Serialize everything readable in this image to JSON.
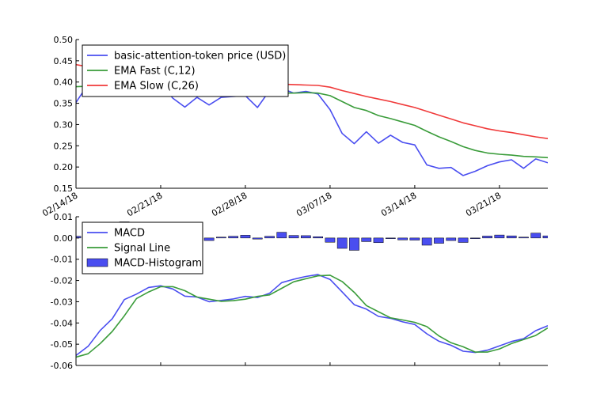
{
  "chart_data": [
    {
      "type": "line",
      "x": [
        "02/14/18",
        "02/15/18",
        "02/16/18",
        "02/17/18",
        "02/18/18",
        "02/19/18",
        "02/20/18",
        "02/21/18",
        "02/22/18",
        "02/23/18",
        "02/24/18",
        "02/25/18",
        "02/26/18",
        "02/27/18",
        "02/28/18",
        "03/01/18",
        "03/02/18",
        "03/03/18",
        "03/04/18",
        "03/05/18",
        "03/06/18",
        "03/07/18",
        "03/08/18",
        "03/09/18",
        "03/10/18",
        "03/11/18",
        "03/12/18",
        "03/13/18",
        "03/14/18",
        "03/15/18",
        "03/16/18",
        "03/17/18",
        "03/18/18",
        "03/19/18",
        "03/20/18",
        "03/21/18",
        "03/22/18",
        "03/23/18",
        "03/24/18",
        "03/25/18"
      ],
      "xtick_labels": [
        "02/14/18",
        "02/21/18",
        "02/28/18",
        "03/07/18",
        "03/14/18",
        "03/21/18"
      ],
      "series": [
        {
          "name": "basic-attention-token price (USD)",
          "color": "#4a4ef0",
          "values": [
            0.352,
            0.395,
            0.41,
            0.415,
            0.413,
            0.412,
            0.41,
            0.395,
            0.362,
            0.341,
            0.364,
            0.346,
            0.364,
            0.366,
            0.368,
            0.34,
            0.38,
            0.385,
            0.374,
            0.378,
            0.372,
            0.335,
            0.279,
            0.255,
            0.283,
            0.256,
            0.275,
            0.258,
            0.252,
            0.205,
            0.197,
            0.199,
            0.18,
            0.19,
            0.203,
            0.212,
            0.217,
            0.197,
            0.219,
            0.21
          ]
        },
        {
          "name": "EMA Fast (C,12)",
          "color": "#3a9c3a",
          "values": [
            0.389,
            0.39,
            0.392,
            0.394,
            0.396,
            0.397,
            0.398,
            0.397,
            0.393,
            0.387,
            0.384,
            0.379,
            0.377,
            0.376,
            0.375,
            0.37,
            0.371,
            0.374,
            0.374,
            0.375,
            0.374,
            0.368,
            0.354,
            0.34,
            0.333,
            0.321,
            0.314,
            0.306,
            0.298,
            0.284,
            0.271,
            0.26,
            0.248,
            0.239,
            0.233,
            0.23,
            0.228,
            0.225,
            0.224,
            0.222
          ]
        },
        {
          "name": "EMA Slow (C,26)",
          "color": "#f03a3a",
          "values": [
            0.441,
            0.436,
            0.432,
            0.429,
            0.426,
            0.423,
            0.42,
            0.417,
            0.413,
            0.409,
            0.406,
            0.403,
            0.401,
            0.399,
            0.397,
            0.395,
            0.395,
            0.395,
            0.394,
            0.393,
            0.392,
            0.388,
            0.38,
            0.373,
            0.366,
            0.36,
            0.354,
            0.347,
            0.34,
            0.331,
            0.322,
            0.313,
            0.304,
            0.297,
            0.29,
            0.285,
            0.281,
            0.276,
            0.271,
            0.267
          ]
        }
      ],
      "ylim": [
        0.15,
        0.5
      ],
      "yticks": [
        "0.15",
        "0.20",
        "0.25",
        "0.30",
        "0.35",
        "0.40",
        "0.45",
        "0.50"
      ],
      "legend": "upper-left"
    },
    {
      "type": "line",
      "x": [
        "02/14/18",
        "02/15/18",
        "02/16/18",
        "02/17/18",
        "02/18/18",
        "02/19/18",
        "02/20/18",
        "02/21/18",
        "02/22/18",
        "02/23/18",
        "02/24/18",
        "02/25/18",
        "02/26/18",
        "02/27/18",
        "02/28/18",
        "03/01/18",
        "03/02/18",
        "03/03/18",
        "03/04/18",
        "03/05/18",
        "03/06/18",
        "03/07/18",
        "03/08/18",
        "03/09/18",
        "03/10/18",
        "03/11/18",
        "03/12/18",
        "03/13/18",
        "03/14/18",
        "03/15/18",
        "03/16/18",
        "03/17/18",
        "03/18/18",
        "03/19/18",
        "03/20/18",
        "03/21/18",
        "03/22/18",
        "03/23/18",
        "03/24/18",
        "03/25/18"
      ],
      "series": [
        {
          "name": "MACD",
          "color": "#4a4ef0",
          "values": [
            -0.0553,
            -0.051,
            -0.0435,
            -0.038,
            -0.029,
            -0.0264,
            -0.0233,
            -0.0225,
            -0.024,
            -0.0274,
            -0.0278,
            -0.03,
            -0.0294,
            -0.0287,
            -0.0275,
            -0.028,
            -0.026,
            -0.021,
            -0.0194,
            -0.0181,
            -0.0172,
            -0.0195,
            -0.0254,
            -0.0314,
            -0.0335,
            -0.0369,
            -0.0378,
            -0.0395,
            -0.0407,
            -0.0451,
            -0.0486,
            -0.0505,
            -0.0533,
            -0.0539,
            -0.0528,
            -0.0508,
            -0.0487,
            -0.0474,
            -0.0436,
            -0.0413
          ]
        },
        {
          "name": "Signal Line",
          "color": "#3a9c3a",
          "values": [
            -0.0561,
            -0.0545,
            -0.0497,
            -0.044,
            -0.0366,
            -0.0285,
            -0.0254,
            -0.0229,
            -0.0229,
            -0.0248,
            -0.0278,
            -0.0288,
            -0.0298,
            -0.0295,
            -0.0288,
            -0.0275,
            -0.0268,
            -0.0237,
            -0.0206,
            -0.0192,
            -0.0178,
            -0.0175,
            -0.0205,
            -0.0256,
            -0.0318,
            -0.0347,
            -0.0376,
            -0.0386,
            -0.0397,
            -0.0417,
            -0.0461,
            -0.0493,
            -0.0512,
            -0.0537,
            -0.0537,
            -0.0522,
            -0.0497,
            -0.0478,
            -0.0459,
            -0.0423
          ]
        }
      ],
      "histogram": {
        "name": "MACD-Histogram",
        "color": "#4a4ef0",
        "values": [
          0.0008,
          0.0035,
          0.0062,
          0.006,
          0.0076,
          0.0021,
          0.0021,
          0.0004,
          -0.0011,
          -0.0026,
          0,
          -0.0012,
          0.0004,
          0.0008,
          0.0013,
          -0.0005,
          0.0008,
          0.0027,
          0.0012,
          0.0011,
          0.0006,
          -0.002,
          -0.0049,
          -0.0058,
          -0.0017,
          -0.0022,
          -0.0002,
          -0.0009,
          -0.001,
          -0.0034,
          -0.0025,
          -0.0012,
          -0.0021,
          -0.0002,
          0.0009,
          0.0014,
          0.001,
          0.0004,
          0.0023,
          0.001
        ]
      },
      "ylim": [
        -0.06,
        0.01
      ],
      "yticks": [
        "-0.06",
        "-0.05",
        "-0.04",
        "-0.03",
        "-0.02",
        "-0.01",
        "0.00",
        "0.01"
      ],
      "legend": "upper-left"
    }
  ]
}
